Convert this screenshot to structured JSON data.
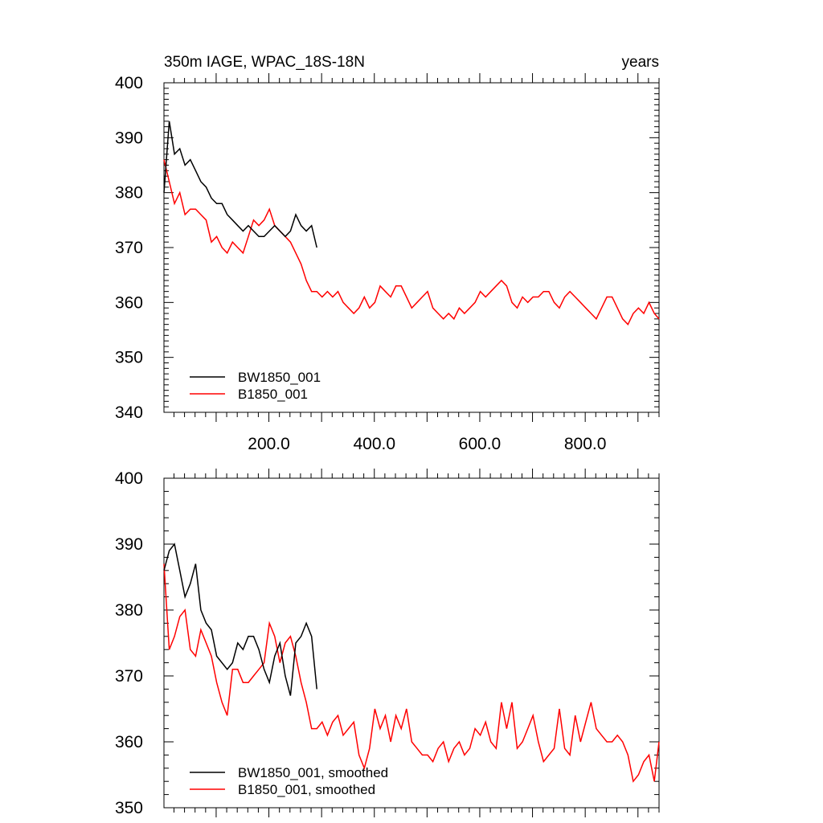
{
  "colors": {
    "bw": "#000000",
    "b": "#ff0000",
    "axis": "#000000",
    "background": "#ffffff"
  },
  "chart_data": [
    {
      "type": "line",
      "title": "350m IAGE, WPAC_18S-18N",
      "title_right": "years",
      "xlabel": "",
      "ylabel": "",
      "xlim": [
        1,
        940
      ],
      "ylim": [
        340,
        400
      ],
      "yticks": [
        340,
        350,
        360,
        370,
        380,
        390,
        400
      ],
      "xticks": [
        200,
        400,
        600,
        800
      ],
      "xtick_labels": [
        "200.0",
        "400.0",
        "600.0",
        "800.0"
      ],
      "legend_position": "bottom-left",
      "series": [
        {
          "name": "BW1850_001",
          "color_key": "bw",
          "x_start": 1,
          "x_step": 10,
          "values": [
            380,
            393,
            387,
            388,
            385,
            386,
            384,
            382,
            381,
            379,
            378,
            378,
            376,
            375,
            374,
            373,
            374,
            373,
            372,
            372,
            373,
            374,
            373,
            372,
            373,
            376,
            374,
            373,
            374,
            370
          ]
        },
        {
          "name": "B1850_001",
          "color_key": "b",
          "x_start": 1,
          "x_step": 10,
          "values": [
            386,
            382,
            378,
            380,
            376,
            377,
            377,
            376,
            375,
            371,
            372,
            370,
            369,
            371,
            370,
            369,
            372,
            375,
            374,
            375,
            377,
            374,
            373,
            372,
            371,
            369,
            367,
            364,
            362,
            362,
            361,
            362,
            361,
            362,
            360,
            359,
            358,
            359,
            361,
            359,
            360,
            363,
            362,
            361,
            363,
            363,
            361,
            359,
            360,
            361,
            362,
            359,
            358,
            357,
            358,
            357,
            359,
            358,
            359,
            360,
            362,
            361,
            362,
            363,
            364,
            363,
            360,
            359,
            361,
            360,
            361,
            361,
            362,
            362,
            360,
            359,
            361,
            362,
            361,
            360,
            359,
            358,
            357,
            359,
            361,
            361,
            359,
            357,
            356,
            358,
            359,
            358,
            360,
            358,
            357
          ]
        }
      ]
    },
    {
      "type": "line",
      "title": "",
      "xlabel": "",
      "ylabel": "",
      "xlim": [
        1,
        940
      ],
      "ylim": [
        350,
        400
      ],
      "yticks": [
        350,
        360,
        370,
        380,
        390,
        400
      ],
      "xtick_labels": [],
      "legend_position": "bottom-left",
      "series": [
        {
          "name": "BW1850_001, smoothed",
          "color_key": "bw",
          "x_start": 1,
          "x_step": 10,
          "values": [
            386,
            389,
            390,
            386,
            382,
            384,
            387,
            380,
            378,
            377,
            373,
            372,
            371,
            372,
            375,
            374,
            376,
            376,
            374,
            371,
            369,
            373,
            375,
            370,
            367,
            375,
            376,
            378,
            376,
            368
          ]
        },
        {
          "name": "B1850_001, smoothed",
          "color_key": "b",
          "x_start": 1,
          "x_step": 10,
          "values": [
            387,
            374,
            376,
            379,
            380,
            374,
            373,
            377,
            375,
            373,
            369,
            366,
            364,
            371,
            371,
            369,
            369,
            370,
            371,
            372,
            378,
            376,
            372,
            375,
            376,
            373,
            369,
            366,
            362,
            362,
            363,
            361,
            363,
            364,
            361,
            362,
            363,
            358,
            356,
            359,
            365,
            362,
            364,
            360,
            364,
            362,
            365,
            360,
            359,
            358,
            358,
            357,
            359,
            360,
            357,
            359,
            360,
            358,
            359,
            362,
            361,
            363,
            360,
            359,
            366,
            362,
            366,
            359,
            360,
            362,
            364,
            360,
            357,
            358,
            359,
            365,
            359,
            358,
            364,
            360,
            363,
            366,
            362,
            361,
            360,
            360,
            361,
            360,
            358,
            354,
            355,
            357,
            358,
            354,
            360
          ]
        }
      ]
    }
  ]
}
